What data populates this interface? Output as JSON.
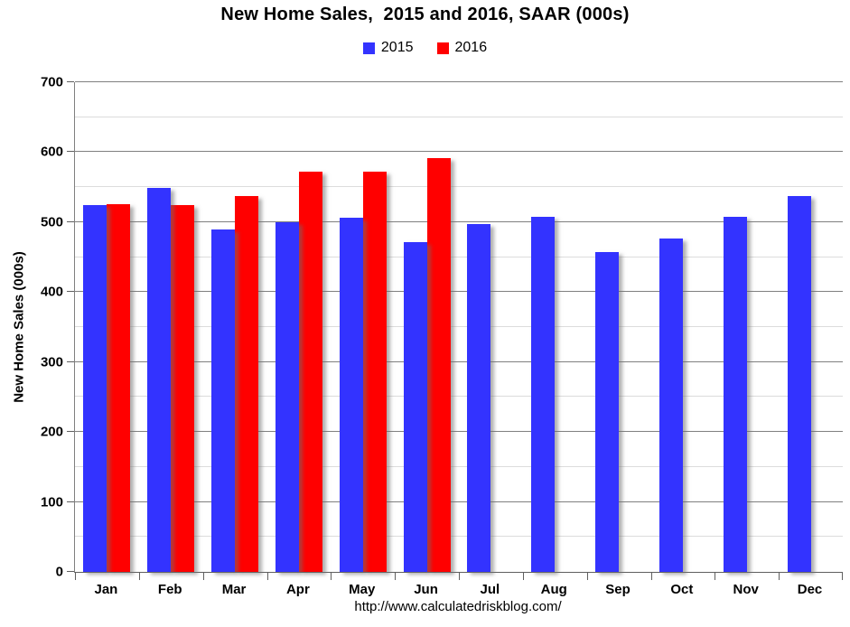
{
  "page": {
    "footer_url": "http://www.calculatedriskblog.com/"
  },
  "chart_data": {
    "type": "bar",
    "title": "New Home Sales,  2015 and 2016, SAAR (000s)",
    "ylabel": "New Home Sales (000s)",
    "xlabel": "",
    "categories": [
      "Jan",
      "Feb",
      "Mar",
      "Apr",
      "May",
      "Jun",
      "Jul",
      "Aug",
      "Sep",
      "Oct",
      "Nov",
      "Dec"
    ],
    "series": [
      {
        "name": "2015",
        "color": "#3333FF",
        "values": [
          524,
          549,
          490,
          500,
          506,
          471,
          497,
          507,
          457,
          477,
          508,
          537
        ]
      },
      {
        "name": "2016",
        "color": "#FF0000",
        "values": [
          526,
          524,
          537,
          572,
          572,
          592,
          null,
          null,
          null,
          null,
          null,
          null
        ]
      }
    ],
    "ylim": [
      0,
      700
    ],
    "ytick_step": 100,
    "gridline_step": 50,
    "grid": true,
    "legend_position": "top-center",
    "gridline_major_color": "#808080",
    "gridline_minor_color": "#DCDCDC"
  }
}
